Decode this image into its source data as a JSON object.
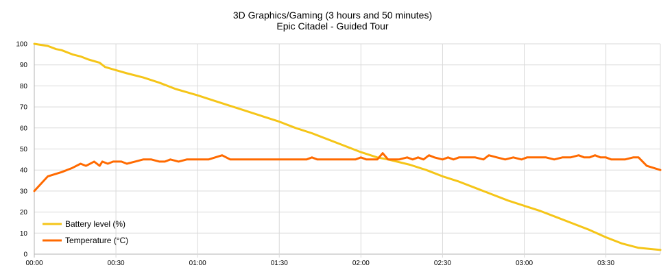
{
  "chart_data": {
    "type": "line",
    "title": "3D Graphics/Gaming (3 hours and 50 minutes)",
    "subtitle": "Epic Citadel - Guided Tour",
    "xlabel": "",
    "ylabel": "",
    "xlim": [
      "00:00",
      "03:50"
    ],
    "ylim": [
      0,
      100
    ],
    "x_ticks": [
      "00:00",
      "00:30",
      "01:00",
      "01:30",
      "02:00",
      "02:30",
      "03:00",
      "03:30"
    ],
    "y_ticks": [
      0,
      10,
      20,
      30,
      40,
      50,
      60,
      70,
      80,
      90,
      100
    ],
    "grid": true,
    "legend_position": "bottom-left",
    "series": [
      {
        "name": "Battery level (%)",
        "color": "#f5c518",
        "points": [
          [
            "00:00",
            100
          ],
          [
            "00:05",
            99
          ],
          [
            "00:08",
            97.5
          ],
          [
            "00:10",
            97
          ],
          [
            "00:14",
            95
          ],
          [
            "00:17",
            94
          ],
          [
            "00:20",
            92.5
          ],
          [
            "00:24",
            91
          ],
          [
            "00:26",
            89
          ],
          [
            "00:30",
            87.5
          ],
          [
            "00:34",
            86
          ],
          [
            "00:40",
            84
          ],
          [
            "00:46",
            81.5
          ],
          [
            "00:52",
            78.5
          ],
          [
            "00:56",
            77
          ],
          [
            "01:00",
            75.5
          ],
          [
            "01:06",
            73
          ],
          [
            "01:12",
            70.5
          ],
          [
            "01:18",
            68
          ],
          [
            "01:24",
            65.5
          ],
          [
            "01:30",
            63
          ],
          [
            "01:36",
            60
          ],
          [
            "01:42",
            57.5
          ],
          [
            "01:48",
            54.5
          ],
          [
            "01:54",
            51.5
          ],
          [
            "02:00",
            48.5
          ],
          [
            "02:06",
            46
          ],
          [
            "02:10",
            45
          ],
          [
            "02:18",
            42.5
          ],
          [
            "02:24",
            40
          ],
          [
            "02:30",
            37
          ],
          [
            "02:36",
            34.5
          ],
          [
            "02:42",
            31.5
          ],
          [
            "02:48",
            28.5
          ],
          [
            "02:54",
            25.5
          ],
          [
            "03:00",
            23
          ],
          [
            "03:06",
            20.5
          ],
          [
            "03:12",
            17.5
          ],
          [
            "03:18",
            14.5
          ],
          [
            "03:24",
            11.5
          ],
          [
            "03:30",
            8
          ],
          [
            "03:36",
            5
          ],
          [
            "03:42",
            3
          ],
          [
            "03:50",
            2
          ]
        ]
      },
      {
        "name": "Temperature (°C)",
        "color": "#ff6a00",
        "points": [
          [
            "00:00",
            30
          ],
          [
            "00:05",
            37
          ],
          [
            "00:10",
            39
          ],
          [
            "00:14",
            41
          ],
          [
            "00:17",
            43
          ],
          [
            "00:19",
            42
          ],
          [
            "00:22",
            44
          ],
          [
            "00:24",
            42
          ],
          [
            "00:25",
            44
          ],
          [
            "00:27",
            43
          ],
          [
            "00:29",
            44
          ],
          [
            "00:32",
            44
          ],
          [
            "00:34",
            43
          ],
          [
            "00:37",
            44
          ],
          [
            "00:40",
            45
          ],
          [
            "00:43",
            45
          ],
          [
            "00:46",
            44
          ],
          [
            "00:48",
            44
          ],
          [
            "00:50",
            45
          ],
          [
            "00:53",
            44
          ],
          [
            "00:56",
            45
          ],
          [
            "01:00",
            45
          ],
          [
            "01:04",
            45
          ],
          [
            "01:09",
            47
          ],
          [
            "01:12",
            45
          ],
          [
            "01:20",
            45
          ],
          [
            "01:30",
            45
          ],
          [
            "01:40",
            45
          ],
          [
            "01:42",
            46
          ],
          [
            "01:44",
            45
          ],
          [
            "01:50",
            45
          ],
          [
            "01:58",
            45
          ],
          [
            "02:00",
            46
          ],
          [
            "02:02",
            45
          ],
          [
            "02:06",
            45
          ],
          [
            "02:08",
            48
          ],
          [
            "02:10",
            45
          ],
          [
            "02:14",
            45
          ],
          [
            "02:17",
            46
          ],
          [
            "02:19",
            45
          ],
          [
            "02:21",
            46
          ],
          [
            "02:23",
            45
          ],
          [
            "02:25",
            47
          ],
          [
            "02:27",
            46
          ],
          [
            "02:30",
            45
          ],
          [
            "02:32",
            46
          ],
          [
            "02:34",
            45
          ],
          [
            "02:36",
            46
          ],
          [
            "02:42",
            46
          ],
          [
            "02:45",
            45
          ],
          [
            "02:47",
            47
          ],
          [
            "02:50",
            46
          ],
          [
            "02:53",
            45
          ],
          [
            "02:56",
            46
          ],
          [
            "02:59",
            45
          ],
          [
            "03:01",
            46
          ],
          [
            "03:08",
            46
          ],
          [
            "03:11",
            45
          ],
          [
            "03:14",
            46
          ],
          [
            "03:17",
            46
          ],
          [
            "03:20",
            47
          ],
          [
            "03:22",
            46
          ],
          [
            "03:24",
            46
          ],
          [
            "03:26",
            47
          ],
          [
            "03:28",
            46
          ],
          [
            "03:30",
            46
          ],
          [
            "03:32",
            45
          ],
          [
            "03:37",
            45
          ],
          [
            "03:40",
            46
          ],
          [
            "03:42",
            46
          ],
          [
            "03:45",
            42
          ],
          [
            "03:50",
            40
          ]
        ]
      }
    ]
  }
}
